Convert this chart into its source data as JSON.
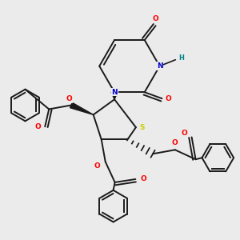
{
  "background": "#ebebeb",
  "bond_color": "#1a1a1a",
  "lw": 1.4,
  "atom_colors": {
    "O": "#ff0000",
    "N": "#0000cc",
    "S": "#cccc00",
    "H": "#008080",
    "C": "#1a1a1a"
  },
  "fs": 6.5
}
